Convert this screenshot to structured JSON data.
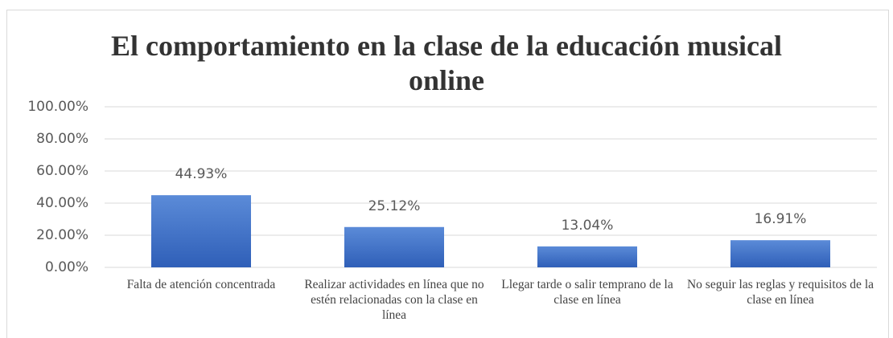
{
  "chart_data": {
    "type": "bar",
    "title": "El comportamiento en la clase de la educación musical online",
    "categories": [
      "Falta de atención concentrada",
      "Realizar actividades en línea que no estén relacionadas con la clase en línea",
      "Llegar tarde o salir temprano de la clase en línea",
      "No seguir las reglas y requisitos de la clase en línea"
    ],
    "values": [
      44.93,
      25.12,
      13.04,
      16.91
    ],
    "value_labels": [
      "44.93%",
      "25.12%",
      "13.04%",
      "16.91%"
    ],
    "color": "#4472c4",
    "ylim": [
      0,
      100
    ],
    "yticks": [
      {
        "value": 0,
        "label": "0.00%"
      },
      {
        "value": 20,
        "label": "20.00%"
      },
      {
        "value": 40,
        "label": "40.00%"
      },
      {
        "value": 60,
        "label": "60.00%"
      },
      {
        "value": 80,
        "label": "80.00%"
      },
      {
        "value": 100,
        "label": "100.00%"
      }
    ],
    "grid": true
  }
}
